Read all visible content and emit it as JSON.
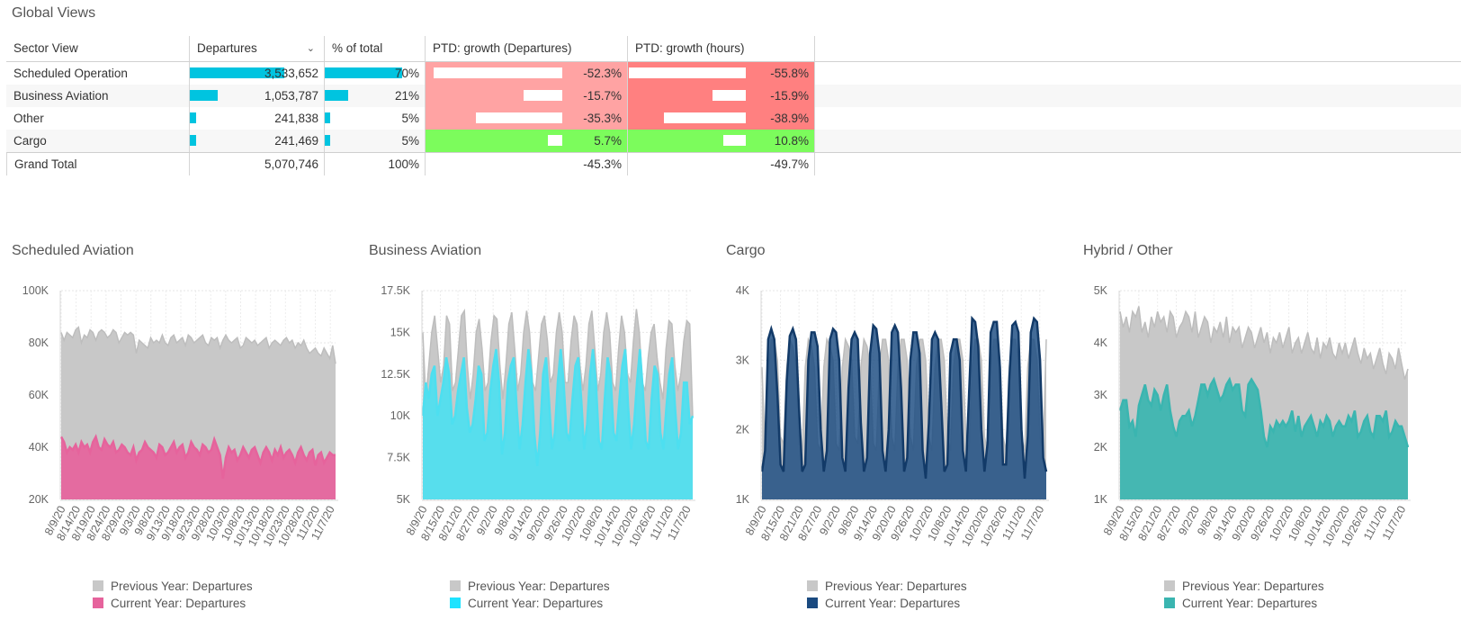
{
  "page_title": "Global Views",
  "table": {
    "headers": [
      "Sector View",
      "Departures",
      "% of total",
      "PTD: growth (Departures)",
      "PTD: growth (hours)"
    ],
    "sort_icon": "chevron-down-icon",
    "rows": [
      {
        "name": "Scheduled Operation",
        "departures": "3,533,652",
        "pct": "70%",
        "growth_dep": "-52.3%",
        "growth_hours": "-55.8%",
        "dep_fraction": 0.697,
        "pct_fraction": 0.7,
        "gd_value": -52.3,
        "gh_value": -55.8
      },
      {
        "name": "Business Aviation",
        "departures": "1,053,787",
        "pct": "21%",
        "growth_dep": "-15.7%",
        "growth_hours": "-15.9%",
        "dep_fraction": 0.208,
        "pct_fraction": 0.21,
        "gd_value": -15.7,
        "gh_value": -15.9
      },
      {
        "name": "Other",
        "departures": "241,838",
        "pct": "5%",
        "growth_dep": "-35.3%",
        "growth_hours": "-38.9%",
        "dep_fraction": 0.048,
        "pct_fraction": 0.05,
        "gd_value": -35.3,
        "gh_value": -38.9
      },
      {
        "name": "Cargo",
        "departures": "241,469",
        "pct": "5%",
        "growth_dep": "5.7%",
        "growth_hours": "10.8%",
        "dep_fraction": 0.048,
        "pct_fraction": 0.05,
        "gd_value": 5.7,
        "gh_value": 10.8
      }
    ],
    "total": {
      "name": "Grand Total",
      "departures": "5,070,746",
      "pct": "100%",
      "growth_dep": "-45.3%",
      "growth_hours": "-49.7%"
    },
    "colors": {
      "bar": "#00c4e0",
      "neg_light": "#ffa3a3",
      "neg_strong": "#ff8080",
      "pos": "#7cfc5c"
    }
  },
  "legend_labels": {
    "previous": "Previous Year: Departures",
    "current": "Current Year: Departures"
  },
  "chart_data": [
    {
      "type": "area",
      "title": "Scheduled Aviation",
      "ylim": [
        20000,
        100000
      ],
      "yticks": [
        20000,
        40000,
        60000,
        80000,
        100000
      ],
      "ytick_labels": [
        "20K",
        "40K",
        "60K",
        "80K",
        "100K"
      ],
      "xtick_labels": [
        "8/9/20",
        "8/14/20",
        "8/19/20",
        "8/24/20",
        "8/29/20",
        "9/3/20",
        "9/8/20",
        "9/13/20",
        "9/18/20",
        "9/23/20",
        "9/28/20",
        "10/3/20",
        "10/8/20",
        "10/13/20",
        "10/18/20",
        "10/23/20",
        "10/28/20",
        "11/2/20",
        "11/7/20"
      ],
      "x_days": 96,
      "current_color": "#e6639c",
      "series": [
        {
          "name": "Previous Year: Departures",
          "values": [
            84000,
            81000,
            84000,
            83000,
            82000,
            85000,
            86000,
            80000,
            83000,
            82000,
            85000,
            84000,
            81000,
            84000,
            85000,
            84000,
            82000,
            83000,
            85000,
            84000,
            80000,
            82000,
            84000,
            83000,
            84000,
            83000,
            76000,
            81000,
            80000,
            79000,
            78000,
            82000,
            80000,
            81000,
            80000,
            83000,
            80000,
            79000,
            82000,
            83000,
            80000,
            81000,
            82000,
            79000,
            83000,
            82000,
            80000,
            81000,
            82000,
            83000,
            80000,
            79000,
            82000,
            81000,
            82000,
            78000,
            81000,
            83000,
            81000,
            80000,
            81000,
            82000,
            78000,
            79000,
            82000,
            81000,
            80000,
            81000,
            79000,
            80000,
            81000,
            82000,
            78000,
            80000,
            81000,
            80000,
            79000,
            81000,
            82000,
            80000,
            81000,
            78000,
            80000,
            79000,
            81000,
            78000,
            76000,
            77000,
            78000,
            76000,
            75000,
            78000,
            76000,
            74000,
            79000,
            72000
          ]
        },
        {
          "name": "Current Year: Departures",
          "values": [
            44000,
            42000,
            38000,
            40000,
            39000,
            41000,
            38000,
            42000,
            40000,
            41000,
            38000,
            42000,
            44000,
            40000,
            39000,
            43000,
            41000,
            40000,
            42000,
            38000,
            39000,
            41000,
            40000,
            38000,
            37000,
            40000,
            35000,
            38000,
            39000,
            42000,
            40000,
            39000,
            38000,
            36000,
            41000,
            40000,
            37000,
            38000,
            40000,
            42000,
            38000,
            40000,
            41000,
            36000,
            38000,
            42000,
            40000,
            39000,
            37000,
            41000,
            40000,
            38000,
            39000,
            43000,
            40000,
            37000,
            28000,
            36000,
            40000,
            38000,
            39000,
            35000,
            37000,
            40000,
            38000,
            36000,
            39000,
            40000,
            37000,
            34000,
            38000,
            40000,
            38000,
            35000,
            39000,
            37000,
            40000,
            36000,
            38000,
            39000,
            37000,
            34000,
            38000,
            40000,
            37000,
            35000,
            38000,
            39000,
            33000,
            37000,
            38000,
            34000,
            36000,
            38000,
            37000,
            37000
          ]
        }
      ]
    },
    {
      "type": "area",
      "title": "Business Aviation",
      "ylim": [
        5000,
        17500
      ],
      "yticks": [
        5000,
        7500,
        10000,
        12500,
        15000,
        17500
      ],
      "ytick_labels": [
        "5K",
        "7.5K",
        "10K",
        "12.5K",
        "15K",
        "17.5K"
      ],
      "xtick_labels": [
        "8/9/20",
        "8/15/20",
        "8/21/20",
        "8/27/20",
        "9/2/20",
        "9/8/20",
        "9/14/20",
        "9/20/20",
        "9/26/20",
        "10/2/20",
        "10/8/20",
        "10/14/20",
        "10/20/20",
        "10/26/20",
        "11/1/20",
        "11/7/20"
      ],
      "x_days": 93,
      "current_color": "#4ddff0",
      "series": [
        {
          "name": "Previous Year: Departures",
          "values": [
            15000,
            11000,
            13000,
            15000,
            16000,
            14000,
            12000,
            13000,
            16000,
            15500,
            11500,
            12000,
            14000,
            16000,
            16300,
            13000,
            11000,
            12500,
            15000,
            15800,
            14000,
            11500,
            12000,
            14500,
            16000,
            15800,
            13000,
            11000,
            13000,
            15500,
            16200,
            14000,
            11500,
            12500,
            15000,
            16300,
            15000,
            12000,
            11500,
            13500,
            15500,
            16000,
            14500,
            12000,
            12500,
            15000,
            16200,
            15000,
            12000,
            12000,
            14500,
            16000,
            15500,
            13000,
            11500,
            13000,
            15500,
            16300,
            14000,
            11500,
            12500,
            15000,
            16200,
            15000,
            12000,
            11500,
            14000,
            16000,
            15000,
            12500,
            12000,
            14500,
            16400,
            15000,
            12000,
            11500,
            13500,
            15000,
            15500,
            13500,
            12000,
            11000,
            14000,
            15700,
            15500,
            13000,
            11500,
            12500,
            14500,
            15700,
            15500,
            10000
          ]
        },
        {
          "name": "Current Year: Departures",
          "values": [
            10000,
            12000,
            11000,
            12500,
            13000,
            10000,
            11000,
            12000,
            13500,
            12500,
            9500,
            10000,
            11500,
            12500,
            13500,
            10500,
            9000,
            9500,
            11000,
            13000,
            12500,
            8500,
            9000,
            11500,
            13000,
            14000,
            12000,
            7700,
            9000,
            12000,
            13000,
            13500,
            10500,
            8000,
            9500,
            12000,
            14000,
            12500,
            9000,
            7000,
            9000,
            12500,
            13500,
            11000,
            8000,
            9000,
            12000,
            14000,
            12000,
            9000,
            8500,
            11000,
            13000,
            13500,
            11000,
            8000,
            9500,
            12500,
            14000,
            12000,
            8500,
            8000,
            11000,
            13500,
            12500,
            9000,
            8500,
            11000,
            13000,
            14000,
            10500,
            8000,
            9500,
            12000,
            14000,
            11500,
            8500,
            8000,
            11000,
            13000,
            12500,
            9000,
            8000,
            10500,
            12500,
            13500,
            10500,
            8000,
            9000,
            12000,
            12000,
            9500,
            10000
          ]
        }
      ]
    },
    {
      "type": "area",
      "title": "Cargo",
      "ylim": [
        1000,
        4000
      ],
      "yticks": [
        1000,
        2000,
        3000,
        4000
      ],
      "ytick_labels": [
        "1K",
        "2K",
        "3K",
        "4K"
      ],
      "xtick_labels": [
        "8/9/20",
        "8/15/20",
        "8/21/20",
        "8/27/20",
        "9/2/20",
        "9/8/20",
        "9/14/20",
        "9/20/20",
        "9/26/20",
        "10/2/20",
        "10/8/20",
        "10/14/20",
        "10/20/20",
        "10/26/20",
        "11/1/20",
        "11/7/20"
      ],
      "x_days": 93,
      "current_color": "#1a4a80",
      "series": [
        {
          "name": "Previous Year: Departures",
          "values": [
            2900,
            1700,
            2800,
            3300,
            3300,
            3000,
            1900,
            1800,
            2900,
            3300,
            3200,
            2900,
            1800,
            1700,
            2900,
            3300,
            3200,
            2900,
            1800,
            1700,
            2900,
            3300,
            3200,
            3000,
            1800,
            1700,
            2900,
            3300,
            3200,
            3000,
            1900,
            1800,
            2900,
            3300,
            3200,
            2900,
            1800,
            1700,
            2900,
            3300,
            3300,
            3000,
            1900,
            1700,
            2900,
            3300,
            3300,
            3000,
            1900,
            1700,
            2900,
            3300,
            3300,
            3000,
            1900,
            1700,
            2900,
            3300,
            3300,
            3000,
            1900,
            1700,
            2900,
            3300,
            3300,
            3000,
            1900,
            1700,
            2900,
            3300,
            3300,
            3000,
            1900,
            1700,
            2900,
            3300,
            3300,
            3000,
            1900,
            1700,
            2900,
            3300,
            3300,
            3000,
            1900,
            1700,
            2900,
            3300,
            3300,
            3000,
            1900,
            1700,
            3300
          ]
        },
        {
          "name": "Current Year: Departures",
          "values": [
            1400,
            1700,
            3300,
            3450,
            3300,
            2500,
            1500,
            1400,
            2700,
            3350,
            3450,
            3300,
            2300,
            1400,
            1500,
            3000,
            3400,
            3400,
            3200,
            2000,
            1400,
            1700,
            3300,
            3450,
            3400,
            3000,
            1600,
            1400,
            2600,
            3300,
            3400,
            3300,
            2100,
            1400,
            1600,
            3100,
            3500,
            3450,
            3100,
            1700,
            1400,
            2000,
            3400,
            3500,
            3400,
            2600,
            1400,
            1600,
            3000,
            3400,
            3400,
            3100,
            1700,
            1300,
            2100,
            3300,
            3400,
            3300,
            2400,
            1400,
            1500,
            3100,
            3300,
            3300,
            3000,
            1700,
            1400,
            2500,
            3600,
            3550,
            3200,
            2000,
            1400,
            1800,
            3400,
            3550,
            3550,
            2900,
            1500,
            1500,
            2700,
            3500,
            3550,
            3400,
            2000,
            1300,
            1900,
            3400,
            3600,
            3550,
            3000,
            1600,
            1400
          ]
        }
      ]
    },
    {
      "type": "area",
      "title": "Hybrid / Other",
      "ylim": [
        1000,
        5000
      ],
      "yticks": [
        1000,
        2000,
        3000,
        4000,
        5000
      ],
      "ytick_labels": [
        "1K",
        "2K",
        "3K",
        "4K",
        "5K"
      ],
      "xtick_labels": [
        "8/9/20",
        "8/15/20",
        "8/21/20",
        "8/27/20",
        "9/2/20",
        "9/8/20",
        "9/14/20",
        "9/20/20",
        "9/26/20",
        "10/2/20",
        "10/8/20",
        "10/14/20",
        "10/20/20",
        "10/26/20",
        "11/1/20",
        "11/7/20"
      ],
      "x_days": 93,
      "current_color": "#3ab5b0",
      "series": [
        {
          "name": "Previous Year: Departures",
          "values": [
            4600,
            4300,
            4500,
            4200,
            4600,
            4500,
            4700,
            4200,
            4400,
            4100,
            4500,
            4300,
            4600,
            4400,
            4500,
            4200,
            4600,
            4500,
            4100,
            4300,
            4400,
            4600,
            4500,
            4200,
            4600,
            4100,
            4300,
            4500,
            4400,
            4000,
            4300,
            4200,
            4400,
            4100,
            4500,
            4000,
            4300,
            4200,
            4300,
            3900,
            4100,
            4300,
            4200,
            3900,
            4100,
            4300,
            4000,
            4200,
            3800,
            4100,
            4000,
            4200,
            3900,
            4100,
            4300,
            3800,
            4000,
            4100,
            3800,
            4000,
            4200,
            3900,
            3800,
            4100,
            3700,
            4000,
            3900,
            4100,
            3800,
            3700,
            4000,
            3800,
            4000,
            3700,
            3900,
            4100,
            3800,
            3600,
            3900,
            3700,
            3800,
            3500,
            3700,
            3900,
            3600,
            3400,
            3800,
            3700,
            3500,
            3900,
            3600,
            3300,
            3500
          ]
        },
        {
          "name": "Current Year: Departures",
          "values": [
            2700,
            2900,
            2900,
            2400,
            2500,
            2200,
            2800,
            3000,
            3200,
            2900,
            2800,
            3100,
            3000,
            2700,
            3000,
            3200,
            2700,
            2400,
            2200,
            2500,
            2600,
            2600,
            2700,
            2400,
            2600,
            2900,
            3200,
            3200,
            3000,
            3200,
            3300,
            3100,
            2900,
            3000,
            3200,
            3300,
            3100,
            3200,
            3200,
            2700,
            2600,
            3200,
            3300,
            3200,
            3100,
            2700,
            2200,
            2000,
            2400,
            2300,
            2500,
            2400,
            2500,
            2400,
            2500,
            2700,
            2300,
            2600,
            2200,
            2400,
            2500,
            2600,
            2400,
            2200,
            2500,
            2400,
            2600,
            2500,
            2200,
            2400,
            2500,
            2400,
            2400,
            2600,
            2500,
            2700,
            2200,
            2300,
            2500,
            2600,
            2300,
            2200,
            2600,
            2600,
            2500,
            2700,
            2200,
            2300,
            2500,
            2400,
            2400,
            2200,
            2000
          ]
        }
      ]
    }
  ]
}
